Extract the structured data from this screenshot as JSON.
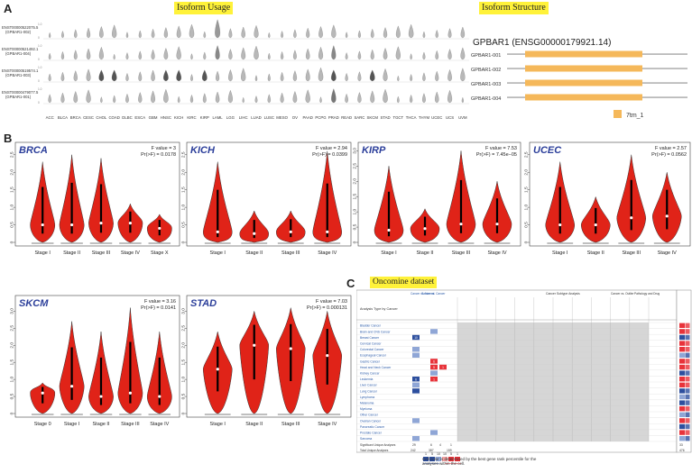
{
  "panelA": {
    "letter": "A",
    "usage_title": "Isoform Usage",
    "structure_title": "Isoform Structure",
    "gene_title": "GPBAR1 (ENSG00000179921.14)",
    "isoform_labels": [
      {
        "id": "ENST00000522075.5",
        "name": "(GPBAR1-002)"
      },
      {
        "id": "ENST00000521492.1",
        "name": "(GPBAR1-004)"
      },
      {
        "id": "ENST00000519574.1",
        "name": "(GPBAR1-003)"
      },
      {
        "id": "ENST00000479077.5",
        "name": "(GPBAR1-001)"
      }
    ],
    "cancer_types": [
      "ACC",
      "BLCA",
      "BRCA",
      "CESC",
      "CHOL",
      "COAD",
      "DLBC",
      "ESCA",
      "GBM",
      "HNSC",
      "KICH",
      "KIRC",
      "KIRP",
      "LAML",
      "LGG",
      "LIHC",
      "LUAD",
      "LUSC",
      "MESO",
      "OV",
      "PAAD",
      "PCPG",
      "PRAD",
      "READ",
      "SARC",
      "SKCM",
      "STAD",
      "TGCT",
      "THCA",
      "THYM",
      "UCEC",
      "UCS",
      "UVM"
    ],
    "structure_isoforms": [
      "GPBAR1-001",
      "GPBAR1-002",
      "GPBAR1-003",
      "GPBAR1-004"
    ],
    "legend_label": "7tm_1",
    "colors": {
      "domain": "#f5b85a",
      "line": "#bbbbbb"
    }
  },
  "panelB": {
    "letter": "B",
    "violin_color": "#e02318",
    "plots": [
      {
        "title": "BRCA",
        "f": "F value = 3",
        "p": "Pr(>F) = 0.0178",
        "stages": [
          "Stage I",
          "Stage II",
          "Stage III",
          "Stage IV",
          "Stage X"
        ],
        "yticks": [
          "0",
          "0.5",
          "1.0",
          "1.5",
          "2.0",
          "2.5"
        ],
        "ymax": 2.7,
        "chart_data": {
          "type": "violin",
          "categories": [
            "Stage I",
            "Stage II",
            "Stage III",
            "Stage IV",
            "Stage X"
          ],
          "medians": [
            0.5,
            0.5,
            0.55,
            0.55,
            0.4
          ],
          "maxima": [
            2.3,
            2.5,
            2.4,
            1.1,
            0.8
          ]
        }
      },
      {
        "title": "KICH",
        "f": "F value = 2.94",
        "p": "Pr(>F) = 0.0399",
        "stages": [
          "Stage I",
          "Stage II",
          "Stage III",
          "Stage IV"
        ],
        "yticks": [
          "0",
          "0.5",
          "1.0",
          "1.5",
          "2.0",
          "2.5"
        ],
        "ymax": 2.7,
        "chart_data": {
          "type": "violin",
          "categories": [
            "Stage I",
            "Stage II",
            "Stage III",
            "Stage IV"
          ],
          "medians": [
            0.3,
            0.25,
            0.3,
            0.3
          ],
          "maxima": [
            2.3,
            0.9,
            0.9,
            2.6
          ]
        }
      },
      {
        "title": "KIRP",
        "f": "F value = 7.53",
        "p": "Pr(>F) = 7.45e−05",
        "stages": [
          "Stage I",
          "Stage II",
          "Stage III",
          "Stage IV"
        ],
        "yticks": [
          "0",
          "0.5",
          "1.0",
          "1.5",
          "2.0",
          "2.5",
          "3.0"
        ],
        "ymax": 3.1,
        "chart_data": {
          "type": "violin",
          "categories": [
            "Stage I",
            "Stage II",
            "Stage III",
            "Stage IV"
          ],
          "medians": [
            0.4,
            0.45,
            0.6,
            0.6
          ],
          "maxima": [
            2.5,
            1.1,
            3.0,
            2.0
          ]
        }
      },
      {
        "title": "UCEC",
        "f": "F value = 2.57",
        "p": "Pr(>F) = 0.0562",
        "stages": [
          "Stage I",
          "Stage II",
          "Stage III",
          "Stage IV"
        ],
        "yticks": [
          "0",
          "0.5",
          "1.0",
          "1.5",
          "2.0",
          "2.5"
        ],
        "ymax": 2.7,
        "chart_data": {
          "type": "violin",
          "categories": [
            "Stage I",
            "Stage II",
            "Stage III",
            "Stage IV"
          ],
          "medians": [
            0.5,
            0.5,
            0.7,
            0.75
          ],
          "maxima": [
            2.3,
            1.3,
            2.5,
            2.0
          ]
        }
      },
      {
        "title": "SKCM",
        "f": "F value = 3.16",
        "p": "Pr(>F) = 0.0141",
        "stages": [
          "Stage 0",
          "Stage I",
          "Stage II",
          "Stage III",
          "Stage IV"
        ],
        "yticks": [
          "0",
          "0.5",
          "1.0",
          "1.5",
          "2.0",
          "2.5",
          "3.0"
        ],
        "ymax": 3.3,
        "chart_data": {
          "type": "violin",
          "categories": [
            "Stage 0",
            "Stage I",
            "Stage II",
            "Stage III",
            "Stage IV"
          ],
          "medians": [
            0.6,
            0.8,
            0.5,
            0.6,
            0.5
          ],
          "maxima": [
            0.9,
            2.7,
            2.4,
            3.1,
            2.4
          ]
        }
      },
      {
        "title": "STAD",
        "f": "F value = 7.03",
        "p": "Pr(>F) = 0.000131",
        "stages": [
          "Stage I",
          "Stage II",
          "Stage III",
          "Stage IV"
        ],
        "yticks": [
          "0",
          "0.5",
          "1.0",
          "1.5",
          "2.0",
          "2.5",
          "3.0"
        ],
        "ymax": 3.3,
        "chart_data": {
          "type": "violin",
          "categories": [
            "Stage I",
            "Stage II",
            "Stage III",
            "Stage IV"
          ],
          "medians": [
            1.3,
            2.0,
            1.9,
            1.7
          ],
          "maxima": [
            2.4,
            3.0,
            3.1,
            3.0
          ]
        }
      }
    ]
  },
  "panelC": {
    "letter": "C",
    "title": "Oncomine dataset",
    "left_header": "Analysis Type by Cancer",
    "col_groups": [
      "Cancer vs. Normal",
      "Cancer vs. Cancer",
      "Cancer Subtype Analysis",
      "Cancer vs. Outlier",
      "Pathology and Drug",
      "Outlier"
    ],
    "rows": [
      "Bladder Cancer",
      "Brain and CNS Cancer",
      "Breast Cancer",
      "Cervical Cancer",
      "Colorectal Cancer",
      "Esophageal Cancer",
      "Gastric Cancer",
      "Head and Neck Cancer",
      "Kidney Cancer",
      "Leukemia",
      "Liver Cancer",
      "Lung Cancer",
      "Lymphoma",
      "Melanoma",
      "Myeloma",
      "Other Cancer",
      "Ovarian Cancer",
      "Pancreatic Cancer",
      "Prostate Cancer",
      "Sarcoma"
    ],
    "footer_rows": [
      "Significant Unique Analyses",
      "Total Unique Analyses"
    ],
    "footer_values": [
      "29",
      "6",
      "4",
      "1",
      "242",
      "387",
      "159",
      "33",
      "476"
    ],
    "legend_nums": [
      "1",
      "5",
      "10",
      "10",
      "5",
      "1"
    ],
    "legend_note": "Cell color is determined by the best gene rank percentile for the analyses within the cell.",
    "colors": {
      "red": "#e8333a",
      "blue": "#2d4f9e",
      "lightblue": "#8fa6d6",
      "grey": "#d9d9d9"
    }
  }
}
